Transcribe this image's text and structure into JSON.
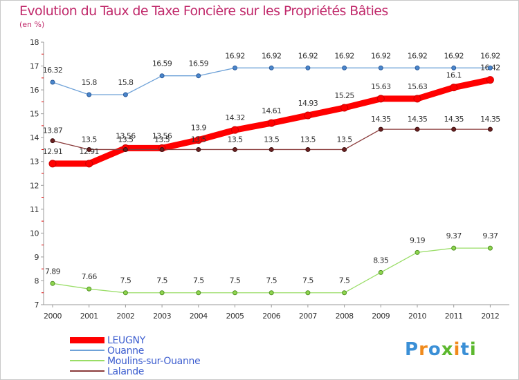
{
  "title": "Evolution du Taux de Taxe Foncière sur les Propriétés Bâties",
  "unit": "(en %)",
  "logo": "Proxiti",
  "colors": {
    "title": "#c0286a",
    "axis": "#999999",
    "grid": "#dddddd",
    "legend_text": "#3c5dcf",
    "tick_red": "#e00000"
  },
  "chart_data": {
    "type": "line",
    "title": "Evolution du Taux de Taxe Foncière sur les Propriétés Bâties",
    "ylabel": "(en %)",
    "xlabel": "",
    "ylim": [
      7,
      18
    ],
    "yticks": [
      "7",
      "8",
      "9",
      "10",
      "11",
      "12",
      "13",
      "14",
      "15",
      "16",
      "17",
      "18"
    ],
    "x": [
      "2000",
      "2001",
      "2002",
      "2003",
      "2004",
      "2005",
      "2006",
      "2007",
      "2008",
      "2009",
      "2010",
      "2011",
      "2012"
    ],
    "grid": false,
    "legend_position": "bottom-left",
    "series": [
      {
        "name": "LEUGNY",
        "color": "#ff0000",
        "values": [
          12.91,
          12.91,
          13.56,
          13.56,
          13.9,
          14.32,
          14.61,
          14.93,
          15.25,
          15.63,
          15.63,
          16.1,
          16.42
        ],
        "labels": [
          "12.91",
          "12.91",
          "13.56",
          "13.56",
          "13.9",
          "14.32",
          "14.61",
          "14.93",
          "15.25",
          "15.63",
          "15.63",
          "16.1",
          "16.42"
        ]
      },
      {
        "name": "Ouanne",
        "color": "#6fa2d8",
        "values": [
          16.32,
          15.8,
          15.8,
          16.59,
          16.59,
          16.92,
          16.92,
          16.92,
          16.92,
          16.92,
          16.92,
          16.92,
          16.92
        ],
        "labels": [
          "16.32",
          "15.8",
          "15.8",
          "16.59",
          "16.59",
          "16.92",
          "16.92",
          "16.92",
          "16.92",
          "16.92",
          "16.92",
          "16.92",
          "16.92"
        ]
      },
      {
        "name": "Moulins-sur-Ouanne",
        "color": "#99dd66",
        "values": [
          7.89,
          7.66,
          7.5,
          7.5,
          7.5,
          7.5,
          7.5,
          7.5,
          7.5,
          8.35,
          9.19,
          9.37,
          9.37
        ],
        "labels": [
          "7.89",
          "7.66",
          "7.5",
          "7.5",
          "7.5",
          "7.5",
          "7.5",
          "7.5",
          "7.5",
          "8.35",
          "9.19",
          "9.37",
          "9.37"
        ]
      },
      {
        "name": "Lalande",
        "color": "#8a3a3a",
        "values": [
          13.87,
          13.5,
          13.5,
          13.5,
          13.5,
          13.5,
          13.5,
          13.5,
          13.5,
          14.35,
          14.35,
          14.35,
          14.35
        ],
        "labels": [
          "13.87",
          "13.5",
          "13.5",
          "13.5",
          "13.5",
          "13.5",
          "13.5",
          "13.5",
          "13.5",
          "14.35",
          "14.35",
          "14.35",
          "14.35"
        ]
      }
    ]
  }
}
